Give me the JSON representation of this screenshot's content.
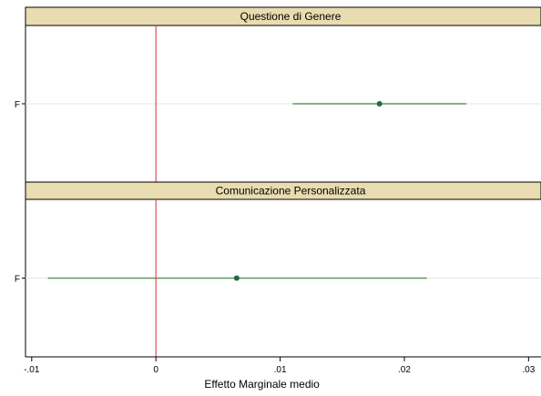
{
  "chart_data": {
    "type": "scatter",
    "subtype": "coefficient-plot-with-confidence-intervals",
    "xlabel": "Effetto Marginale medio",
    "xlim": [
      -0.0105,
      0.031
    ],
    "x_ticks": [
      {
        "value": -0.01,
        "label": "-.01"
      },
      {
        "value": 0,
        "label": "0"
      },
      {
        "value": 0.01,
        "label": ".01"
      },
      {
        "value": 0.02,
        "label": ".02"
      },
      {
        "value": 0.03,
        "label": ".03"
      }
    ],
    "reference_line": {
      "x": 0,
      "color": "#d9534f"
    },
    "grid": "horizontal light gray at category rows",
    "colors": {
      "strip_fill": "#e8dcb0",
      "estimate": "#1f6b3a",
      "interval": "#5a9a64",
      "frame": "#000000"
    },
    "panels": [
      {
        "title": "Questione di Genere",
        "rows": [
          {
            "label": "F",
            "estimate": 0.018,
            "ci_low": 0.011,
            "ci_high": 0.025
          }
        ]
      },
      {
        "title": "Comunicazione Personalizzata",
        "rows": [
          {
            "label": "F",
            "estimate": 0.0065,
            "ci_low": -0.0087,
            "ci_high": 0.0218
          }
        ]
      }
    ]
  }
}
